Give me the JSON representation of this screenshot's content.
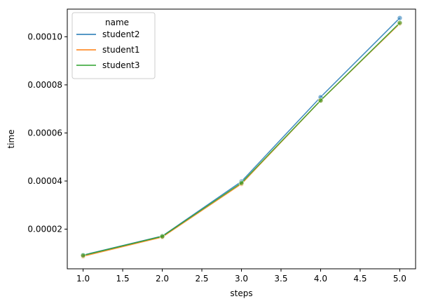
{
  "chart_data": {
    "type": "line",
    "xlabel": "steps",
    "ylabel": "time",
    "x": [
      1.0,
      2.0,
      3.0,
      4.0,
      5.0
    ],
    "xlim": [
      0.8,
      5.2
    ],
    "ylim": [
      3.5e-06,
      0.0001115
    ],
    "xticks": [
      1.0,
      1.5,
      2.0,
      2.5,
      3.0,
      3.5,
      4.0,
      4.5,
      5.0
    ],
    "xtick_labels": [
      "1.0",
      "1.5",
      "2.0",
      "2.5",
      "3.0",
      "3.5",
      "4.0",
      "4.5",
      "5.0"
    ],
    "yticks": [
      2e-05,
      4e-05,
      6e-05,
      8e-05,
      0.0001
    ],
    "ytick_labels": [
      "0.00002",
      "0.00004",
      "0.00006",
      "0.00008",
      "0.00010"
    ],
    "grid": false,
    "legend": {
      "title": "name",
      "placement": "top-left"
    },
    "series": [
      {
        "name": "student2",
        "color": "#1f77b4",
        "values": [
          9.2e-06,
          1.71e-05,
          3.98e-05,
          7.49e-05,
          0.0001078
        ]
      },
      {
        "name": "student1",
        "color": "#ff7f0e",
        "values": [
          8.7e-06,
          1.67e-05,
          3.88e-05,
          7.35e-05,
          0.0001055
        ]
      },
      {
        "name": "student3",
        "color": "#2ca02c",
        "values": [
          9.1e-06,
          1.7e-05,
          3.92e-05,
          7.35e-05,
          0.0001058
        ]
      }
    ]
  }
}
